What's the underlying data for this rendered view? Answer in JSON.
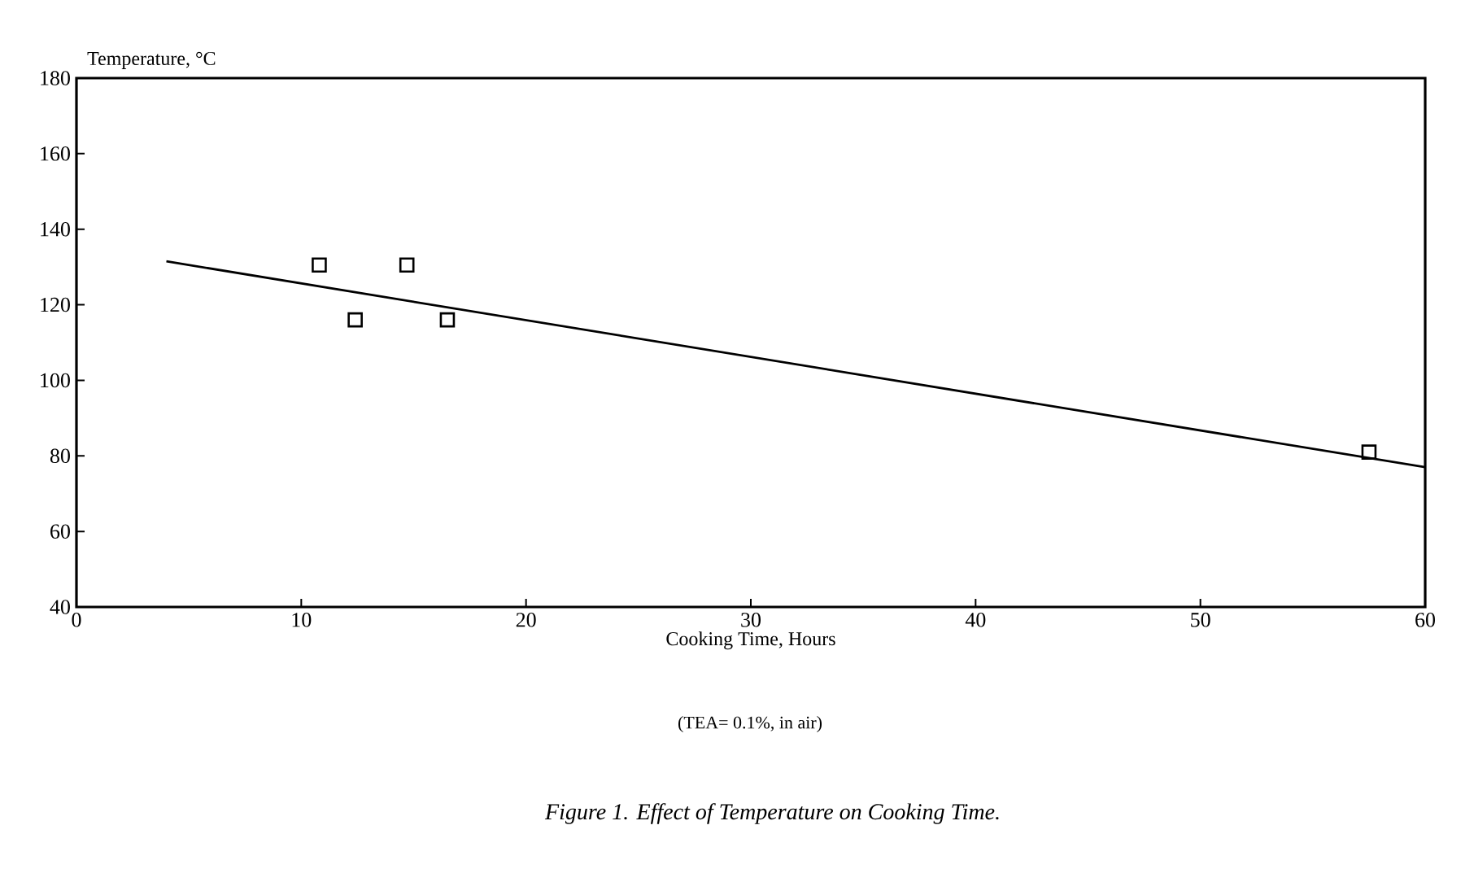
{
  "chart_data": {
    "type": "scatter",
    "title": "Figure 1. Effect of Temperature on Cooking Time.",
    "xlabel": "Cooking Time, Hours",
    "ylabel": "Temperature, °C",
    "annotations": [
      "(TEA= 0.1%, in air)"
    ],
    "xlim": [
      0,
      60
    ],
    "ylim": [
      40,
      180
    ],
    "xticks": [
      0,
      10,
      20,
      30,
      40,
      50,
      60
    ],
    "yticks": [
      40,
      60,
      80,
      100,
      120,
      140,
      160,
      180
    ],
    "grid": false,
    "marker": "square",
    "series": [
      {
        "color": "#000000",
        "x": [
          10.8,
          12.4,
          14.7,
          16.5,
          57.5
        ],
        "values": [
          130.5,
          116,
          130.5,
          116,
          81
        ]
      },
      {
        "type": "line",
        "color": "#000000",
        "marker": "none",
        "line_style": "solid",
        "x": [
          4,
          60
        ],
        "values": [
          131.5,
          77
        ]
      }
    ]
  }
}
